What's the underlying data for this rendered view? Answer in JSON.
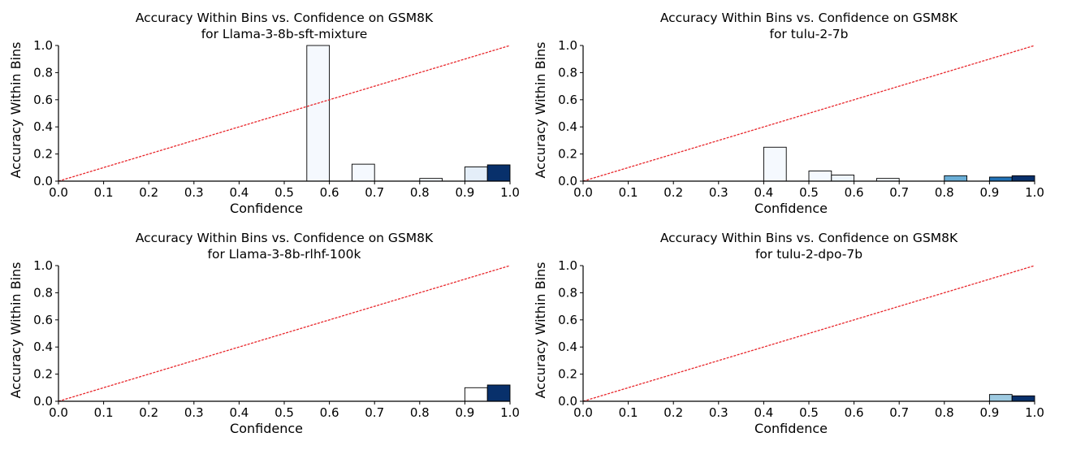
{
  "chart_data": [
    {
      "type": "bar",
      "title": [
        "Accuracy Within Bins vs. Confidence on GSM8K",
        "for Llama-3-8b-sft-mixture"
      ],
      "xlabel": "Confidence",
      "ylabel": "Accuracy Within Bins",
      "xlim": [
        0,
        1
      ],
      "ylim": [
        0,
        1
      ],
      "xticks": [
        "0.0",
        "0.1",
        "0.2",
        "0.3",
        "0.4",
        "0.5",
        "0.6",
        "0.7",
        "0.8",
        "0.9",
        "1.0"
      ],
      "yticks": [
        "0.0",
        "0.2",
        "0.4",
        "0.6",
        "0.8",
        "1.0"
      ],
      "bin_width": 0.05,
      "reference_line": {
        "from": [
          0,
          0
        ],
        "to": [
          1,
          1
        ],
        "color": "#e8262b",
        "style": "dashed"
      },
      "bars": [
        {
          "x": 0.55,
          "value": 1.0,
          "color": "#f5f9fe"
        },
        {
          "x": 0.65,
          "value": 0.125,
          "color": "#f5f9fe"
        },
        {
          "x": 0.8,
          "value": 0.02,
          "color": "#f5f9fe"
        },
        {
          "x": 0.9,
          "value": 0.105,
          "color": "#e4eef9"
        },
        {
          "x": 0.95,
          "value": 0.12,
          "color": "#08306b"
        }
      ]
    },
    {
      "type": "bar",
      "title": [
        "Accuracy Within Bins vs. Confidence on GSM8K",
        "for tulu-2-7b"
      ],
      "xlabel": "Confidence",
      "ylabel": "Accuracy Within Bins",
      "xlim": [
        0,
        1
      ],
      "ylim": [
        0,
        1
      ],
      "xticks": [
        "0.0",
        "0.1",
        "0.2",
        "0.3",
        "0.4",
        "0.5",
        "0.6",
        "0.7",
        "0.8",
        "0.9",
        "1.0"
      ],
      "yticks": [
        "0.0",
        "0.2",
        "0.4",
        "0.6",
        "0.8",
        "1.0"
      ],
      "bin_width": 0.05,
      "reference_line": {
        "from": [
          0,
          0
        ],
        "to": [
          1,
          1
        ],
        "color": "#e8262b",
        "style": "dashed"
      },
      "bars": [
        {
          "x": 0.4,
          "value": 0.25,
          "color": "#f5f9fe"
        },
        {
          "x": 0.5,
          "value": 0.075,
          "color": "#f5f9fe"
        },
        {
          "x": 0.55,
          "value": 0.045,
          "color": "#eef5fc"
        },
        {
          "x": 0.65,
          "value": 0.02,
          "color": "#f5f9fe"
        },
        {
          "x": 0.8,
          "value": 0.04,
          "color": "#6aaed6"
        },
        {
          "x": 0.9,
          "value": 0.03,
          "color": "#2171b5"
        },
        {
          "x": 0.95,
          "value": 0.04,
          "color": "#08306b"
        }
      ]
    },
    {
      "type": "bar",
      "title": [
        "Accuracy Within Bins vs. Confidence on GSM8K",
        "for Llama-3-8b-rlhf-100k"
      ],
      "xlabel": "Confidence",
      "ylabel": "Accuracy Within Bins",
      "xlim": [
        0,
        1
      ],
      "ylim": [
        0,
        1
      ],
      "xticks": [
        "0.0",
        "0.1",
        "0.2",
        "0.3",
        "0.4",
        "0.5",
        "0.6",
        "0.7",
        "0.8",
        "0.9",
        "1.0"
      ],
      "yticks": [
        "0.0",
        "0.2",
        "0.4",
        "0.6",
        "0.8",
        "1.0"
      ],
      "bin_width": 0.05,
      "reference_line": {
        "from": [
          0,
          0
        ],
        "to": [
          1,
          1
        ],
        "color": "#e8262b",
        "style": "dashed"
      },
      "bars": [
        {
          "x": 0.9,
          "value": 0.1,
          "color": "#ffffff"
        },
        {
          "x": 0.95,
          "value": 0.12,
          "color": "#08306b"
        }
      ]
    },
    {
      "type": "bar",
      "title": [
        "Accuracy Within Bins vs. Confidence on GSM8K",
        "for tulu-2-dpo-7b"
      ],
      "xlabel": "Confidence",
      "ylabel": "Accuracy Within Bins",
      "xlim": [
        0,
        1
      ],
      "ylim": [
        0,
        1
      ],
      "xticks": [
        "0.0",
        "0.1",
        "0.2",
        "0.3",
        "0.4",
        "0.5",
        "0.6",
        "0.7",
        "0.8",
        "0.9",
        "1.0"
      ],
      "yticks": [
        "0.0",
        "0.2",
        "0.4",
        "0.6",
        "0.8",
        "1.0"
      ],
      "bin_width": 0.05,
      "reference_line": {
        "from": [
          0,
          0
        ],
        "to": [
          1,
          1
        ],
        "color": "#e8262b",
        "style": "dashed"
      },
      "bars": [
        {
          "x": 0.9,
          "value": 0.05,
          "color": "#9ecae1"
        },
        {
          "x": 0.95,
          "value": 0.04,
          "color": "#08306b"
        }
      ]
    }
  ]
}
